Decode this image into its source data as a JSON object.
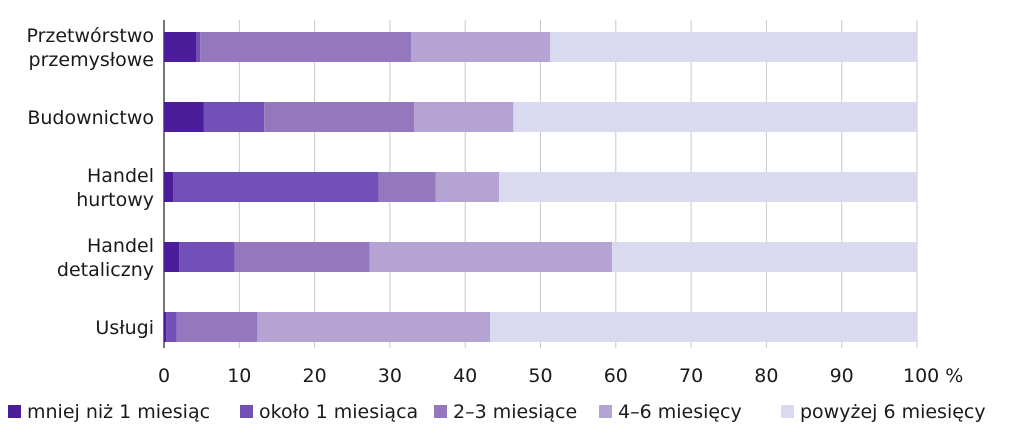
{
  "chart_data": {
    "type": "bar",
    "orientation": "horizontal",
    "stacked": true,
    "categories": [
      [
        "Przetwórstwo",
        "przemysłowe"
      ],
      [
        "Budownictwo"
      ],
      [
        "Handel",
        "hurtowy"
      ],
      [
        "Handel",
        "detaliczny"
      ],
      [
        "Usługi"
      ]
    ],
    "series": [
      {
        "name": "mniej niż 1 miesiąc",
        "color": "#4b1d9b",
        "values": [
          4.3,
          5.3,
          1.2,
          2.0,
          0.3
        ]
      },
      {
        "name": "około 1 miesiąca",
        "color": "#7250b8",
        "values": [
          0.5,
          8.0,
          27.3,
          7.4,
          1.4
        ]
      },
      {
        "name": "2–3 miesiące",
        "color": "#9577bd",
        "values": [
          28.0,
          19.9,
          7.6,
          17.9,
          10.7
        ]
      },
      {
        "name": "4–6 miesięcy",
        "color": "#b5a3d4",
        "values": [
          18.5,
          13.2,
          8.4,
          32.2,
          30.9
        ]
      },
      {
        "name": "powyżej 6 miesięcy",
        "color": "#d9daf0",
        "values": [
          48.7,
          53.6,
          55.5,
          40.5,
          56.7
        ]
      }
    ],
    "xlim": [
      0,
      100
    ],
    "xticks": [
      "0",
      "10",
      "20",
      "30",
      "40",
      "50",
      "60",
      "70",
      "80",
      "90",
      "100 %"
    ],
    "grid": true,
    "legend_position": "bottom"
  }
}
